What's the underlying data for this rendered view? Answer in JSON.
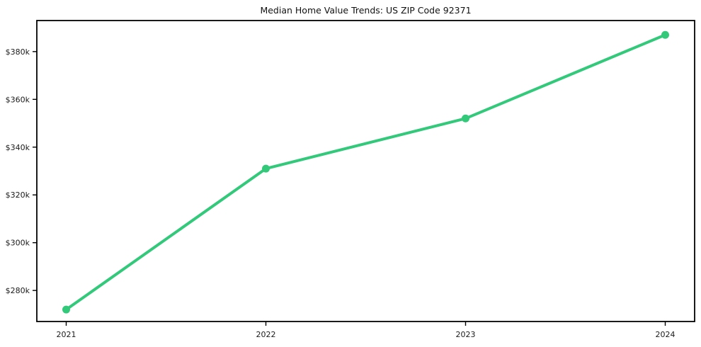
{
  "chart_data": {
    "type": "line",
    "title": "Median Home Value Trends: US ZIP Code 92371",
    "categories": [
      "2021",
      "2022",
      "2023",
      "2024"
    ],
    "values": [
      272000,
      331000,
      352000,
      387000
    ],
    "xlabel": "",
    "ylabel": "",
    "ylim": [
      267000,
      393000
    ],
    "yticks": [
      280000,
      300000,
      320000,
      340000,
      360000,
      380000
    ],
    "ytick_labels": [
      "$280k",
      "$300k",
      "$320k",
      "$340k",
      "$360k",
      "$380k"
    ],
    "grid": false,
    "legend_position": "none",
    "line_color": "#33c97a",
    "marker": "circle",
    "frame_color": "#000000",
    "background_color": "#ffffff"
  }
}
